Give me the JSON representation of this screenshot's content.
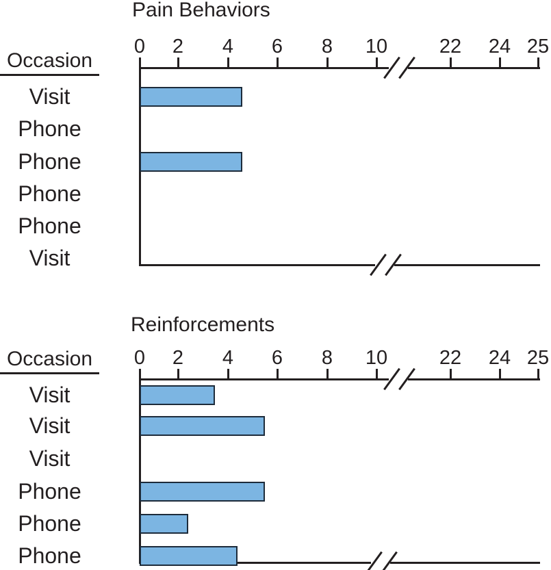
{
  "figure": {
    "description": "Two horizontal bar charts comparing pain behaviors and reinforcements across visit and phone occasions, with a broken x-axis"
  },
  "colors": {
    "bar_fill": "#7cb5e2",
    "bar_border": "#1d2b3a",
    "line_and_text": "#231f20",
    "background": "#ffffff"
  },
  "chart_data": [
    {
      "type": "bar",
      "orientation": "horizontal",
      "title": "Pain Behaviors",
      "row_header": "Occasion",
      "x_axis": {
        "tick_labels": [
          "0",
          "2",
          "4",
          "6",
          "8",
          "10",
          "22",
          "24",
          "25"
        ],
        "tick_values": [
          0,
          2,
          4,
          6,
          8,
          10,
          22,
          24,
          25
        ],
        "range": [
          0,
          25
        ],
        "broken_axis": true,
        "break_between": [
          10,
          22
        ],
        "grid": false
      },
      "rows": [
        {
          "label": "Visit",
          "value": 4.6
        },
        {
          "label": "Phone",
          "value": 0
        },
        {
          "label": "Phone",
          "value": 4.6
        },
        {
          "label": "Phone",
          "value": 0
        },
        {
          "label": "Phone",
          "value": 0
        },
        {
          "label": "Visit",
          "value": 0
        }
      ]
    },
    {
      "type": "bar",
      "orientation": "horizontal",
      "title": "Reinforcements",
      "row_header": "Occasion",
      "x_axis": {
        "tick_labels": [
          "0",
          "2",
          "4",
          "6",
          "8",
          "10",
          "22",
          "24",
          "25"
        ],
        "tick_values": [
          0,
          2,
          4,
          6,
          8,
          10,
          22,
          24,
          25
        ],
        "range": [
          0,
          25
        ],
        "broken_axis": true,
        "break_between": [
          10,
          22
        ],
        "grid": false
      },
      "rows": [
        {
          "label": "Visit",
          "value": 3.5
        },
        {
          "label": "Visit",
          "value": 5.5
        },
        {
          "label": "Visit",
          "value": 0
        },
        {
          "label": "Phone",
          "value": 5.5
        },
        {
          "label": "Phone",
          "value": 2.4
        },
        {
          "label": "Phone",
          "value": 4.4
        }
      ]
    }
  ]
}
